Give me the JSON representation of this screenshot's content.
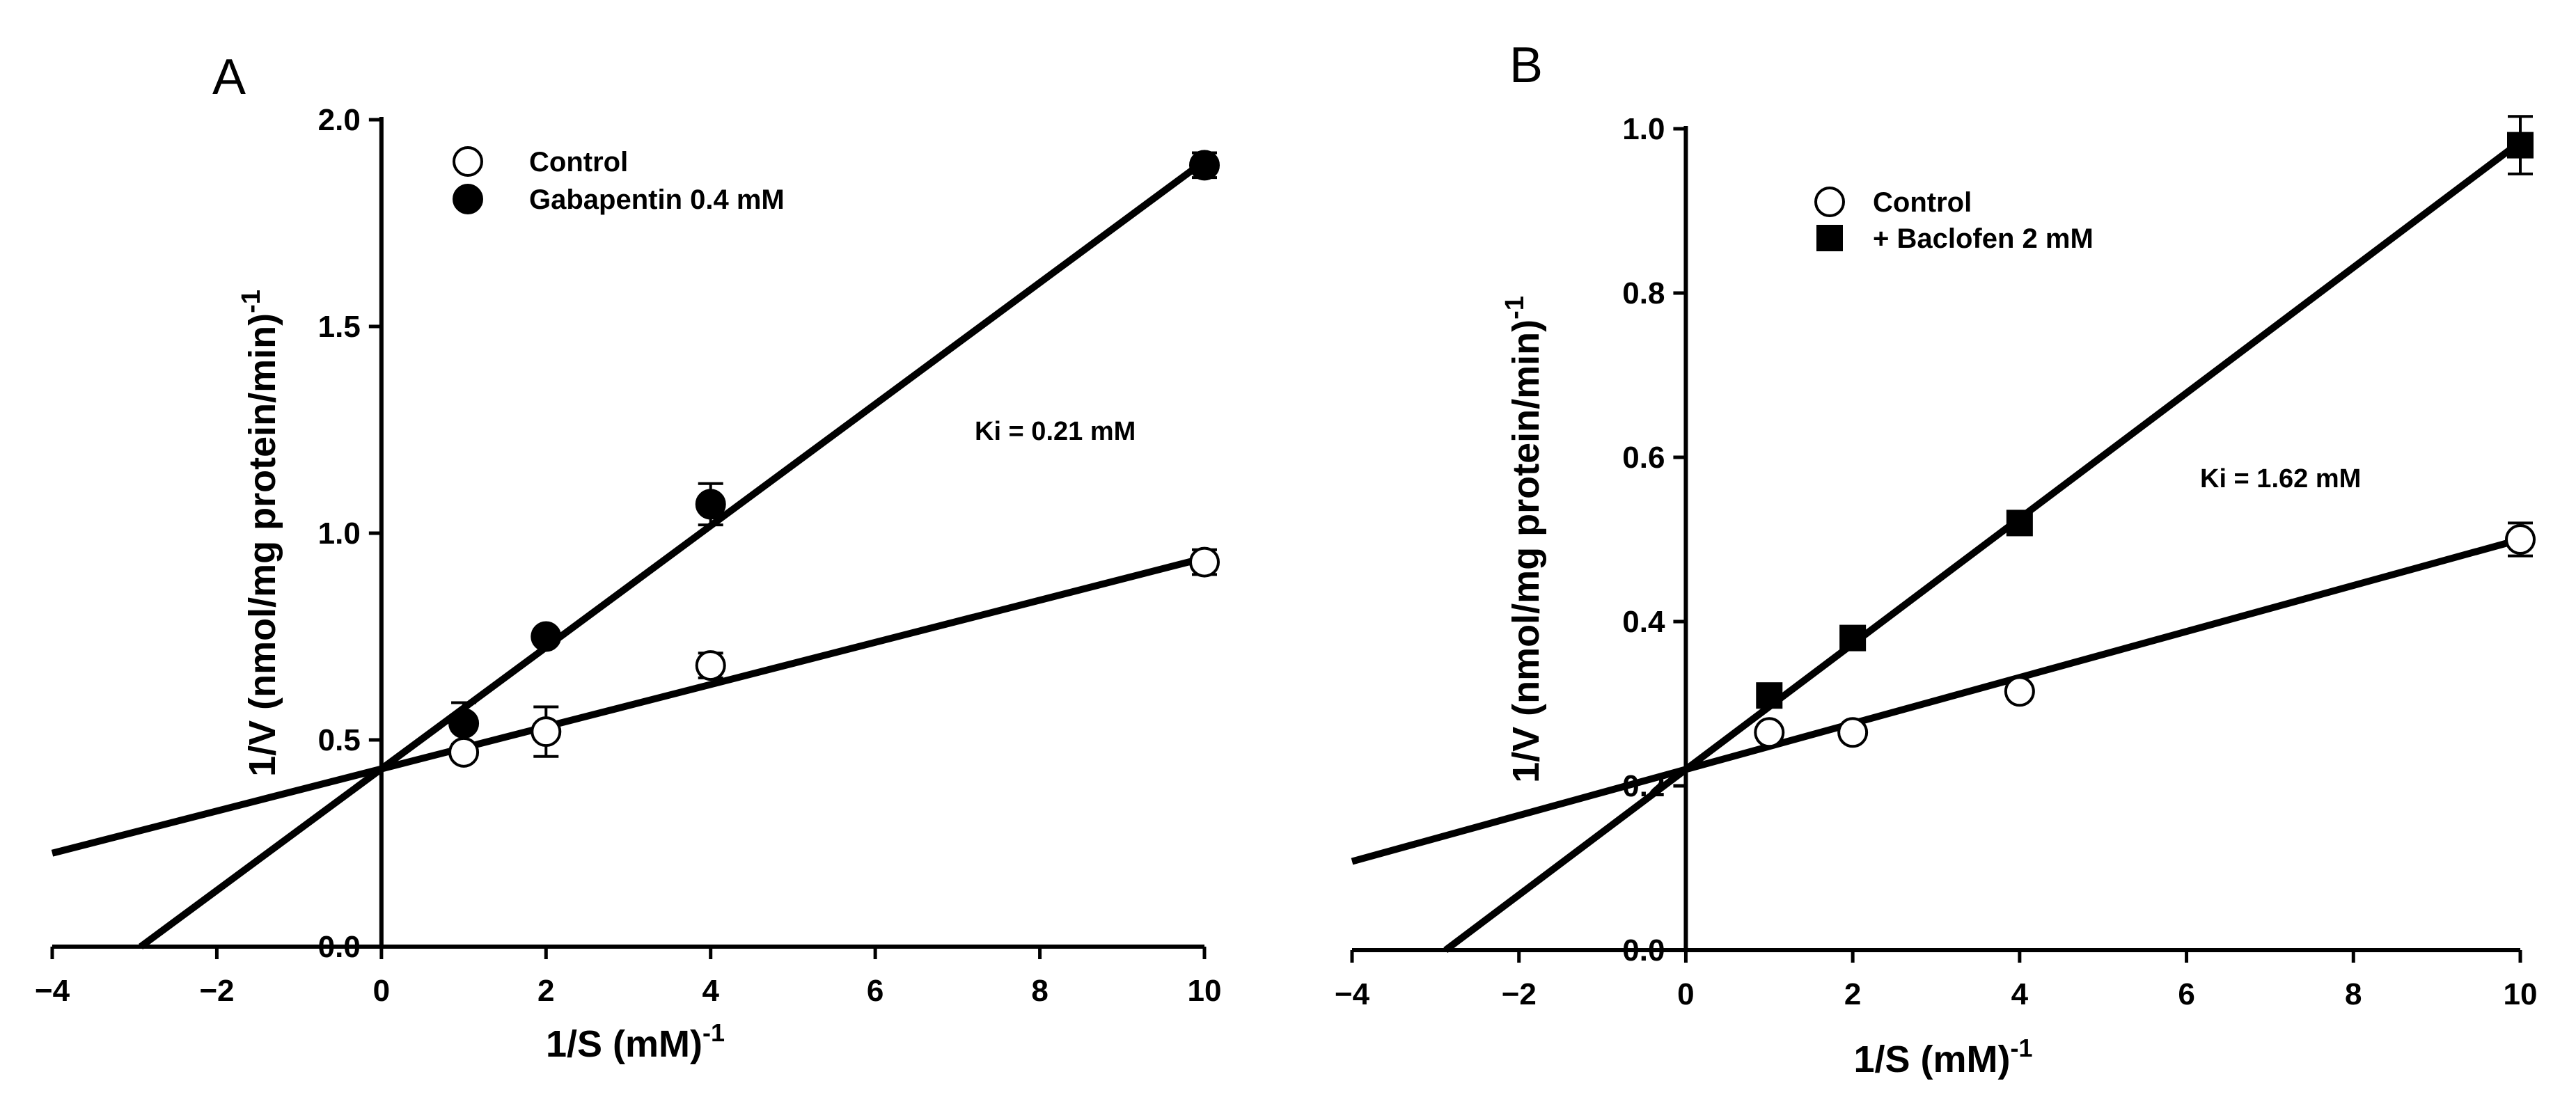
{
  "chart_data": [
    {
      "type": "scatter",
      "panel_label": "A",
      "title": "",
      "xlabel": "1/S (mM)",
      "xlabel_sup": "-1",
      "ylabel": "1/V (nmol/mg protein/min)",
      "ylabel_sup": "-1",
      "xlim": [
        -4,
        10
      ],
      "ylim": [
        0,
        2.0
      ],
      "xticks": [
        -4,
        -2,
        0,
        2,
        4,
        6,
        8,
        10
      ],
      "xtick_labels": [
        "−4",
        "−2",
        "0",
        "2",
        "4",
        "6",
        "8",
        "10"
      ],
      "yticks": [
        0,
        0.5,
        1.0,
        1.5,
        2.0
      ],
      "ytick_labels": [
        "0.0",
        "0.5",
        "1.0",
        "1.5",
        "2.0"
      ],
      "annotation": "Ki = 0.21 mM",
      "legend_position": "top-left",
      "series": [
        {
          "name": "Control",
          "marker": "open-circle",
          "x": [
            1,
            2,
            4,
            10
          ],
          "y": [
            0.47,
            0.52,
            0.68,
            0.93
          ],
          "err": [
            0.0,
            0.06,
            0.03,
            0.03
          ],
          "fit": {
            "intercept": 0.43,
            "slope": 0.051
          }
        },
        {
          "name": "Gabapentin 0.4 mM",
          "marker": "filled-circle",
          "x": [
            1,
            2,
            4,
            10
          ],
          "y": [
            0.54,
            0.75,
            1.07,
            1.89
          ],
          "err": [
            0.05,
            0.0,
            0.05,
            0.03
          ],
          "fit": {
            "intercept": 0.43,
            "slope": 0.147
          }
        }
      ]
    },
    {
      "type": "scatter",
      "panel_label": "B",
      "title": "",
      "xlabel": "1/S (mM)",
      "xlabel_sup": "-1",
      "ylabel": "1/V (nmol/mg protein/min)",
      "ylabel_sup": "-1",
      "xlim": [
        -4,
        10
      ],
      "ylim": [
        0,
        1.0
      ],
      "xticks": [
        -4,
        -2,
        0,
        2,
        4,
        6,
        8,
        10
      ],
      "xtick_labels": [
        "−4",
        "−2",
        "0",
        "2",
        "4",
        "6",
        "8",
        "10"
      ],
      "yticks": [
        0,
        0.2,
        0.4,
        0.6,
        0.8,
        1.0
      ],
      "ytick_labels": [
        "0.0",
        "0.2",
        "0.4",
        "0.6",
        "0.8",
        "1.0"
      ],
      "annotation": "Ki = 1.62 mM",
      "legend_position": "top-left",
      "series": [
        {
          "name": "Control",
          "marker": "open-circle",
          "x": [
            1,
            2,
            4,
            10
          ],
          "y": [
            0.265,
            0.265,
            0.315,
            0.5
          ],
          "err": [
            0.0,
            0.0,
            0.0,
            0.02
          ],
          "fit": {
            "intercept": 0.22,
            "slope": 0.028
          }
        },
        {
          "name": "+ Baclofen 2 mM",
          "marker": "filled-square",
          "x": [
            1,
            2,
            4,
            10
          ],
          "y": [
            0.31,
            0.38,
            0.52,
            0.98
          ],
          "err": [
            0.0,
            0.0,
            0.0,
            0.035
          ],
          "fit": {
            "intercept": 0.22,
            "slope": 0.0764
          }
        }
      ]
    }
  ]
}
